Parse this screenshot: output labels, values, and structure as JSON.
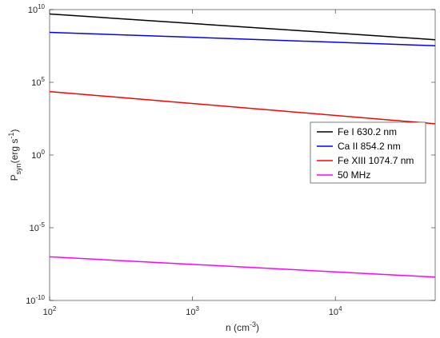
{
  "chart_data": {
    "type": "line",
    "xlabel": {
      "base": "n (cm",
      "sup": "-3",
      "tail": ")"
    },
    "ylabel": {
      "base": "P",
      "sub": "syn",
      "tail": "(erg s",
      "sup": "-1",
      "end": ")"
    },
    "x_scale": "log",
    "y_scale": "log",
    "xlim": [
      100,
      50000
    ],
    "ylim": [
      1e-10,
      10000000000.0
    ],
    "x_ticks": [
      {
        "value": 100,
        "base": "10",
        "exp": "2"
      },
      {
        "value": 1000,
        "base": "10",
        "exp": "3"
      },
      {
        "value": 10000,
        "base": "10",
        "exp": "4"
      }
    ],
    "y_ticks": [
      {
        "value": 1e-10,
        "base": "10",
        "exp": "-10"
      },
      {
        "value": 1e-05,
        "base": "10",
        "exp": "-5"
      },
      {
        "value": 1,
        "base": "10",
        "exp": "0"
      },
      {
        "value": 100000.0,
        "base": "10",
        "exp": "5"
      },
      {
        "value": 10000000000.0,
        "base": "10",
        "exp": "10"
      }
    ],
    "grid": false,
    "legend_position": "right",
    "series": [
      {
        "name": "Fe I 630.2 nm",
        "color": "#000000",
        "x": [
          100,
          50000
        ],
        "y": [
          5000000000.0,
          85000000.0
        ]
      },
      {
        "name": "Ca II 854.2 nm",
        "color": "#0000ff",
        "x": [
          100,
          50000
        ],
        "y": [
          270000000.0,
          33000000.0
        ]
      },
      {
        "name": "Fe XIII 1074.7 nm",
        "color": "#ff0000",
        "x": [
          100,
          50000
        ],
        "y": [
          23000.0,
          140.0
        ]
      },
      {
        "name": "50 MHz",
        "color": "#ff00ff",
        "x": [
          100,
          50000
        ],
        "y": [
          1e-07,
          4e-09
        ]
      }
    ]
  }
}
